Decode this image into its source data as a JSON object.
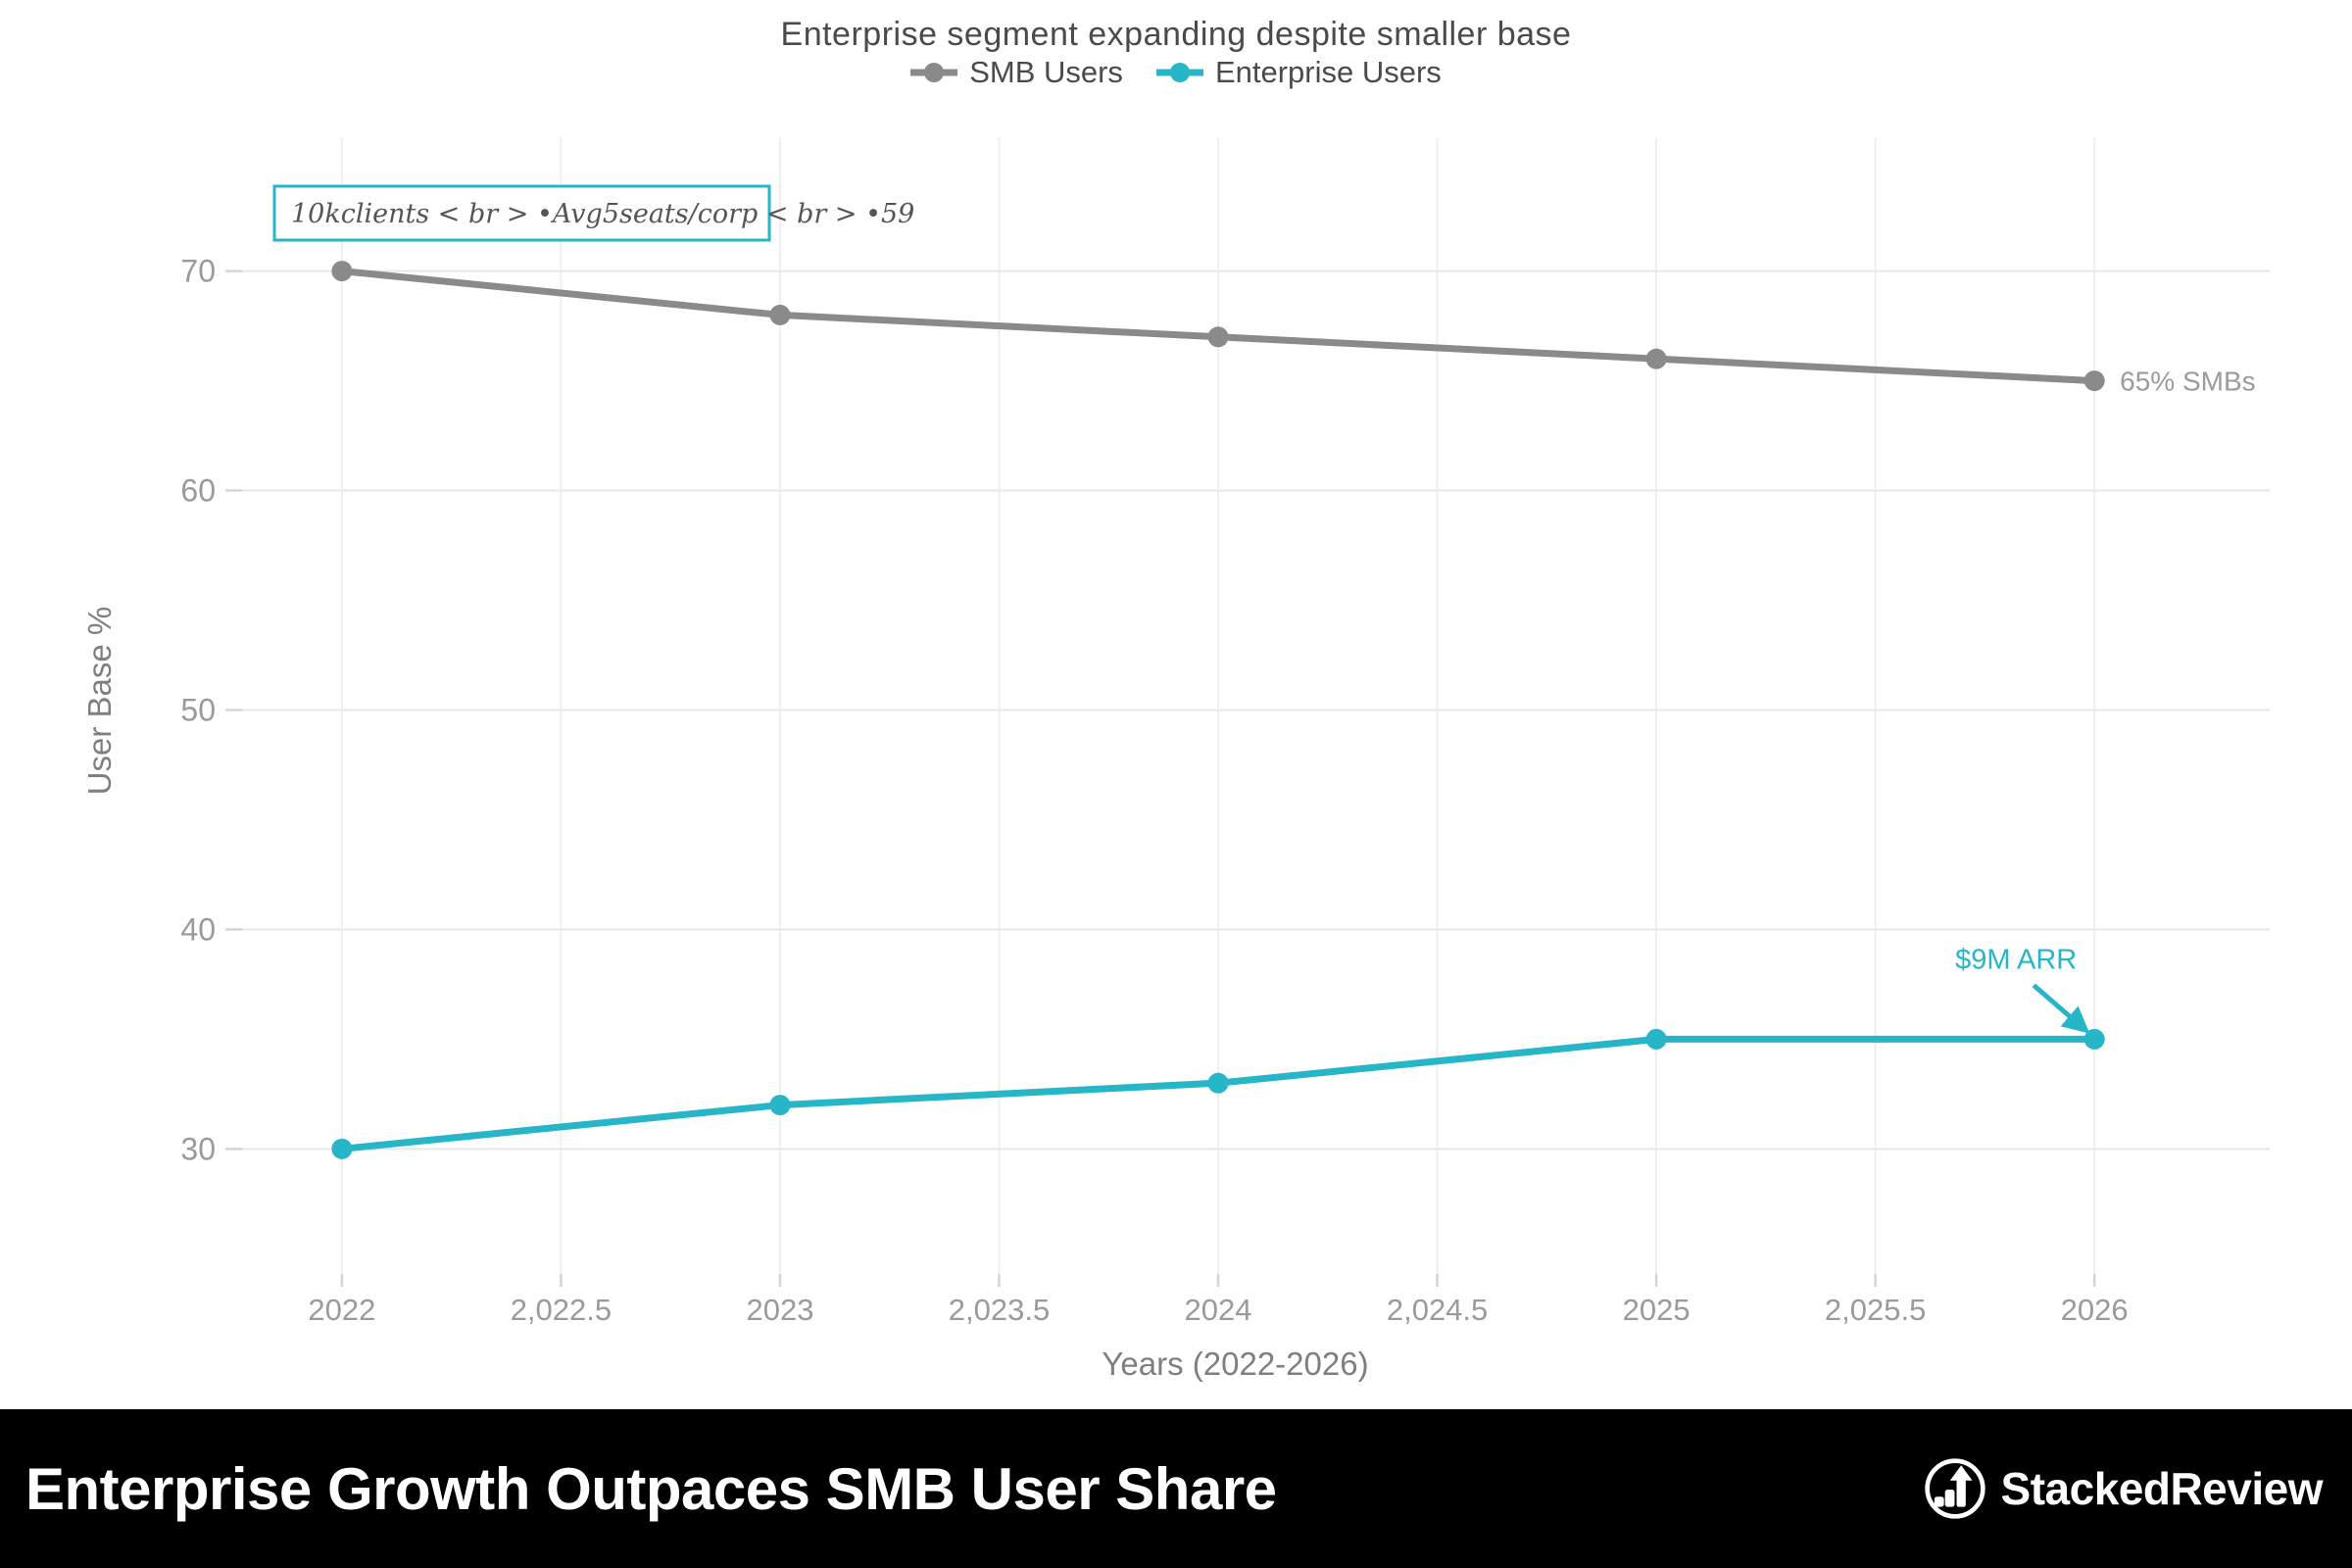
{
  "header": {
    "title": "Enterprise segment expanding despite smaller base"
  },
  "chart_data": {
    "type": "line",
    "title": "Enterprise segment expanding despite smaller base",
    "xlabel": "Years (2022-2026)",
    "ylabel": "User Base %",
    "x": [
      2022,
      2023,
      2024,
      2025,
      2026
    ],
    "series": [
      {
        "name": "SMB Users",
        "color": "#8a8a8a",
        "values": [
          70,
          68,
          67,
          66,
          65
        ]
      },
      {
        "name": "Enterprise Users",
        "color": "#27b5c8",
        "values": [
          30,
          32,
          33,
          35,
          35
        ]
      }
    ],
    "xticks": {
      "values": [
        2022,
        2022.5,
        2023,
        2023.5,
        2024,
        2024.5,
        2025,
        2025.5,
        2026
      ],
      "labels": [
        "2022",
        "2,022.5",
        "2023",
        "2,023.5",
        "2024",
        "2,024.5",
        "2025",
        "2,025.5",
        "2026"
      ]
    },
    "yticks": {
      "values": [
        30,
        40,
        50,
        60,
        70
      ],
      "labels": [
        "30",
        "40",
        "50",
        "60",
        "70"
      ]
    },
    "xlim": [
      2021.79,
      2026.4
    ],
    "ylim": [
      24.3,
      76.1
    ],
    "grid": true,
    "legend_position": "top",
    "annotations": {
      "note_box": {
        "text": "10kclients < br > •Avg5seats/corp < br > •59",
        "border_color": "#27b5c8",
        "text_color": "#555555"
      },
      "smb_end_label": {
        "text": "65% SMBs",
        "x": 2026,
        "y": 65,
        "color": "#9b9b9b"
      },
      "arr_label": {
        "text": "$9M ARR",
        "x": 2026,
        "y": 35,
        "color": "#27b5c8"
      }
    }
  },
  "footer": {
    "headline": "Enterprise Growth Outpaces SMB User Share",
    "brand": "StackedReview"
  },
  "colors": {
    "grid_h": "#e8e8e8",
    "grid_v": "#efefef",
    "tick": "#d5d5d5",
    "tick_text": "#9a9a9a",
    "axis_title": "#7f7f7f",
    "footer_bg": "#000000",
    "footer_text": "#ffffff"
  }
}
